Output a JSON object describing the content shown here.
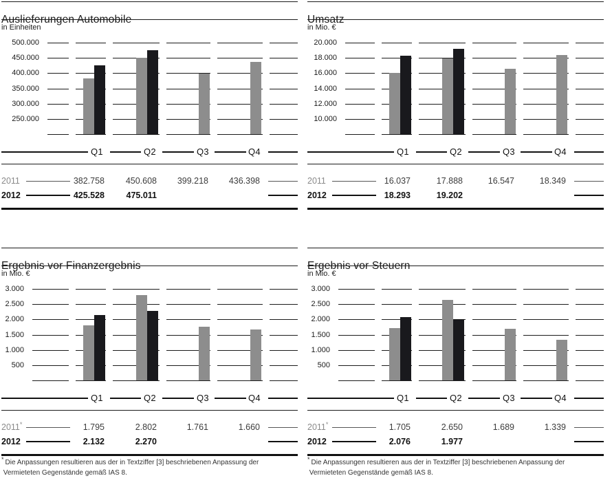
{
  "colors": {
    "bar_2011": "#8d8d8d",
    "bar_2012": "#19191d",
    "rule": "#1a1a1a",
    "year_2011_label": "#8a8a8a",
    "values_2011": "#3c3c3c",
    "values_2012": "#111111",
    "footnote_text": "#333333"
  },
  "chart_data": [
    {
      "type": "bar",
      "title": "Auslieferungen Automobile",
      "unit": "in Einheiten",
      "categories": [
        "Q1",
        "Q2",
        "Q3",
        "Q4"
      ],
      "series": [
        {
          "name": "2011",
          "values": [
            382758,
            450608,
            399218,
            436398
          ]
        },
        {
          "name": "2012",
          "values": [
            425528,
            475011,
            null,
            null
          ]
        }
      ],
      "ylim": [
        200000,
        500000
      ],
      "ytick_step": 50000,
      "ytick_labels": [
        "500.000",
        "450.000",
        "400.000",
        "350.000",
        "300.000",
        "250.000"
      ],
      "grid": "dashed-segments",
      "legend_position": "table-below",
      "label_col_end": 55,
      "table": {
        "rows": [
          {
            "label": "2011",
            "footnote_mark": false,
            "bold": false,
            "values": [
              "382.758",
              "450.608",
              "399.218",
              "436.398"
            ]
          },
          {
            "label": "2012",
            "footnote_mark": false,
            "bold": true,
            "values": [
              "425.528",
              "475.011",
              "",
              ""
            ]
          }
        ]
      },
      "footnote_lines": null
    },
    {
      "type": "bar",
      "title": "Umsatz",
      "unit": "in Mio. €",
      "categories": [
        "Q1",
        "Q2",
        "Q3",
        "Q4"
      ],
      "series": [
        {
          "name": "2011",
          "values": [
            16037,
            17888,
            16547,
            18349
          ]
        },
        {
          "name": "2012",
          "values": [
            18293,
            19202,
            null,
            null
          ]
        }
      ],
      "ylim": [
        8000,
        20000
      ],
      "ytick_step": 2000,
      "ytick_labels": [
        "20.000",
        "18.000",
        "16.000",
        "14.000",
        "12.000",
        "10.000"
      ],
      "grid": "dashed-segments",
      "legend_position": "table-below",
      "label_col_end": 43,
      "table": {
        "rows": [
          {
            "label": "2011",
            "footnote_mark": false,
            "bold": false,
            "values": [
              "16.037",
              "17.888",
              "16.547",
              "18.349"
            ]
          },
          {
            "label": "2012",
            "footnote_mark": false,
            "bold": true,
            "values": [
              "18.293",
              "19.202",
              "",
              ""
            ]
          }
        ]
      },
      "footnote_lines": null
    },
    {
      "type": "bar",
      "title": "Ergebnis vor Finanzergebnis",
      "unit": "in Mio. €",
      "categories": [
        "Q1",
        "Q2",
        "Q3",
        "Q4"
      ],
      "series": [
        {
          "name": "2011",
          "values": [
            1795,
            2802,
            1761,
            1660
          ]
        },
        {
          "name": "2012",
          "values": [
            2132,
            2270,
            null,
            null
          ]
        }
      ],
      "ylim": [
        0,
        3000
      ],
      "ytick_step": 500,
      "ytick_labels": [
        "3.000",
        "2.500",
        "2.000",
        "1.500",
        "1.000",
        "500"
      ],
      "grid": "dashed-segments",
      "legend_position": "table-below",
      "label_col_end": 33,
      "table": {
        "rows": [
          {
            "label": "2011",
            "footnote_mark": true,
            "bold": false,
            "values": [
              "1.795",
              "2.802",
              "1.761",
              "1.660"
            ]
          },
          {
            "label": "2012",
            "footnote_mark": false,
            "bold": true,
            "values": [
              "2.132",
              "2.270",
              "",
              ""
            ]
          }
        ]
      },
      "footnote_lines": [
        "Die Anpassungen resultieren aus der in Textziffer [3] beschriebenen Anpassung der",
        "Vermieteten Gegenstände gemäß IAS 8."
      ]
    },
    {
      "type": "bar",
      "title": "Ergebnis vor Steuern",
      "unit": "in Mio. €",
      "categories": [
        "Q1",
        "Q2",
        "Q3",
        "Q4"
      ],
      "series": [
        {
          "name": "2011",
          "values": [
            1705,
            2650,
            1689,
            1339
          ]
        },
        {
          "name": "2012",
          "values": [
            2076,
            1977,
            null,
            null
          ]
        }
      ],
      "ylim": [
        0,
        3000
      ],
      "ytick_step": 500,
      "ytick_labels": [
        "3.000",
        "2.500",
        "2.000",
        "1.500",
        "1.000",
        "500"
      ],
      "grid": "dashed-segments",
      "legend_position": "table-below",
      "label_col_end": 33,
      "table": {
        "rows": [
          {
            "label": "2011",
            "footnote_mark": true,
            "bold": false,
            "values": [
              "1.705",
              "2.650",
              "1.689",
              "1.339"
            ]
          },
          {
            "label": "2012",
            "footnote_mark": false,
            "bold": true,
            "values": [
              "2.076",
              "1.977",
              "",
              ""
            ]
          }
        ]
      },
      "footnote_lines": [
        "Die Anpassungen resultieren aus der in Textziffer [3] beschriebenen Anpassung der",
        "Vermieteten Gegenstände gemäß IAS 8."
      ]
    }
  ]
}
